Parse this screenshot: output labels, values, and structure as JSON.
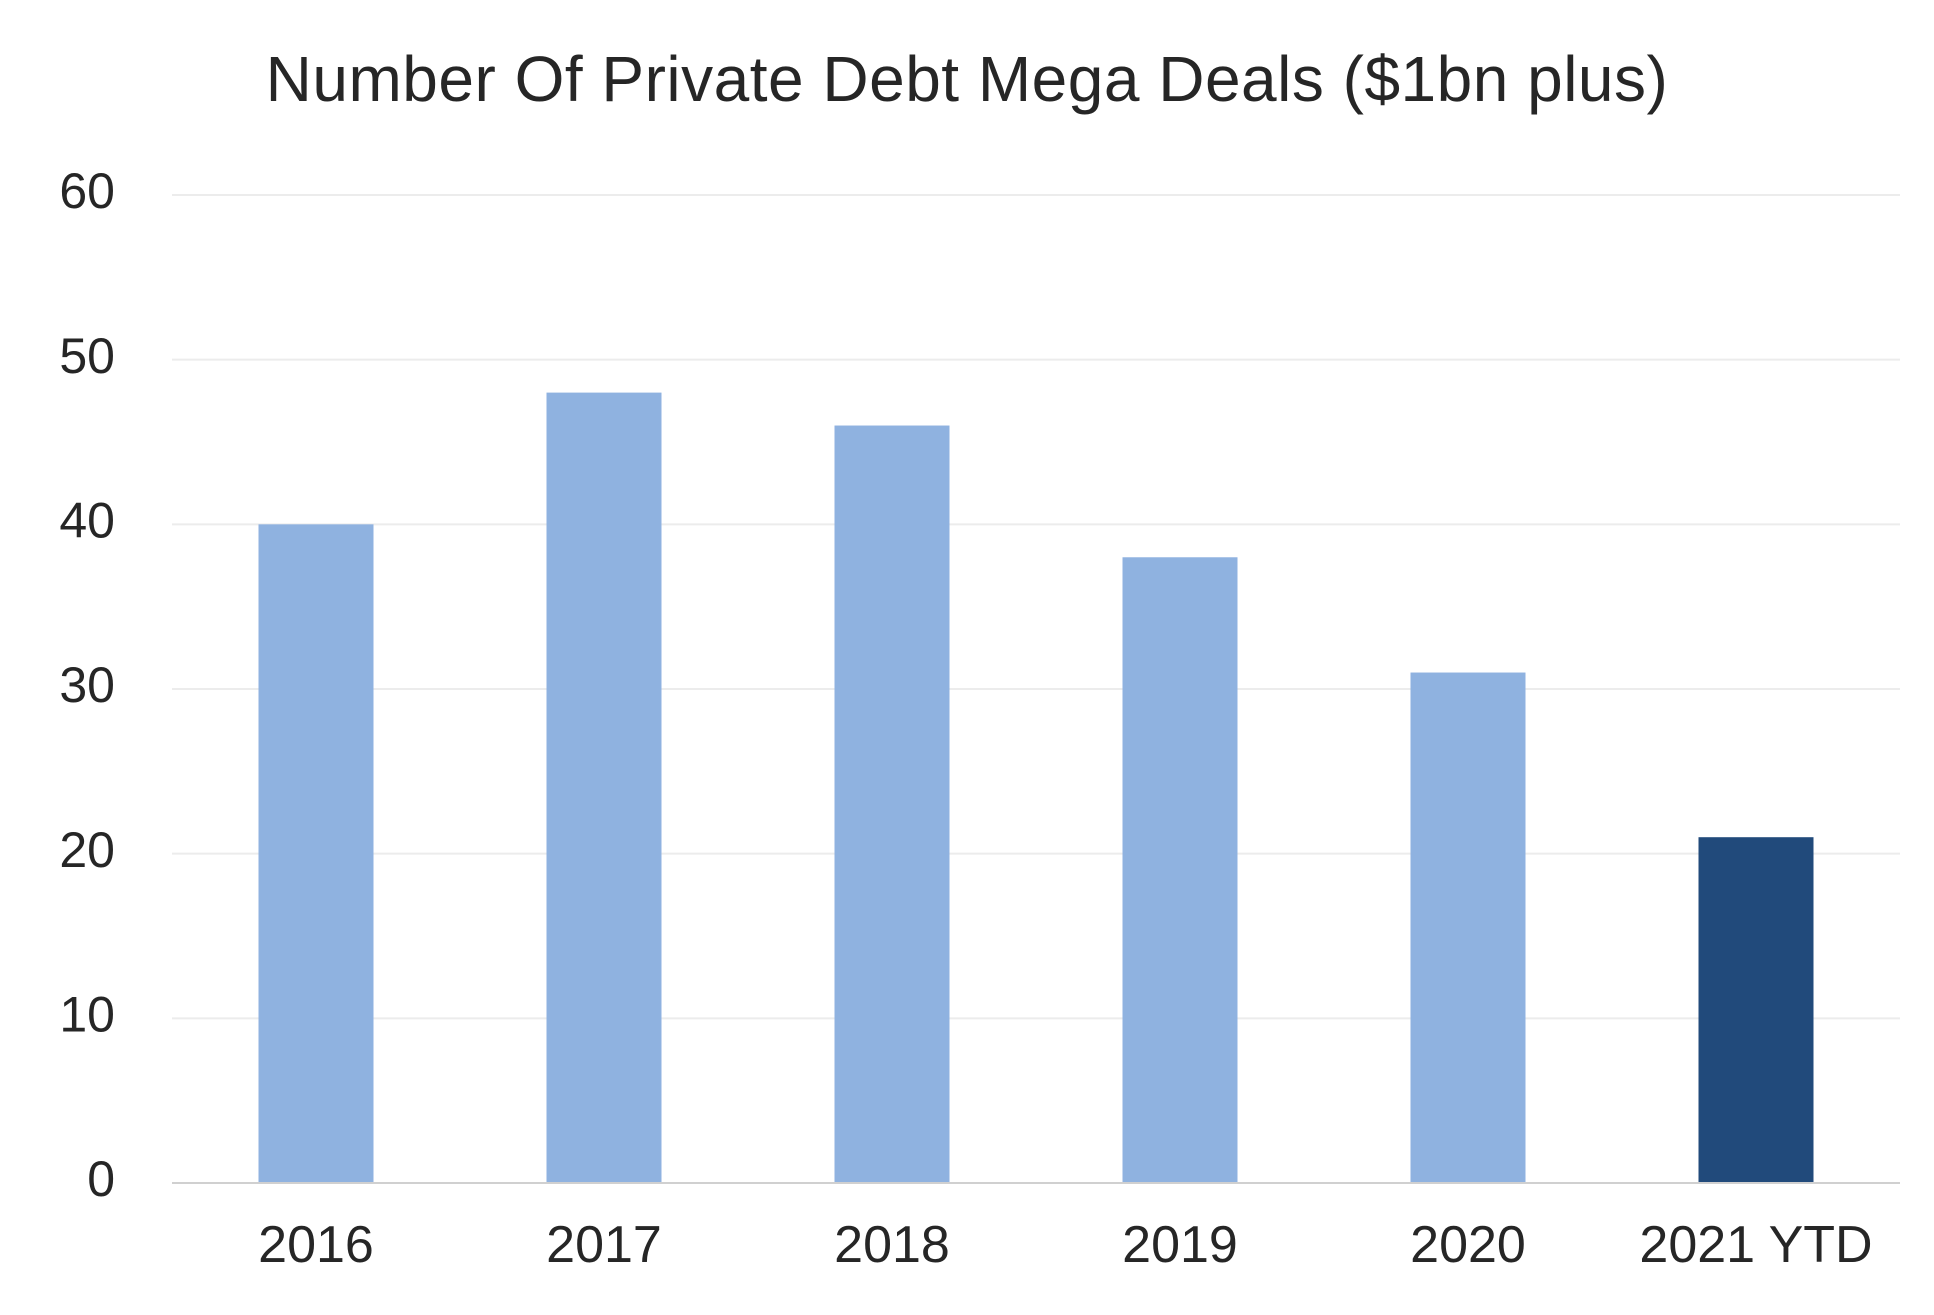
{
  "chart_data": {
    "type": "bar",
    "title": "Number Of Private Debt Mega Deals ($1bn plus)",
    "xlabel": "",
    "ylabel": "",
    "categories": [
      "2016",
      "2017",
      "2018",
      "2019",
      "2020",
      "2021 YTD"
    ],
    "values": [
      40,
      48,
      46,
      38,
      31,
      21
    ],
    "highlight_index": 5,
    "ylim": [
      0,
      60
    ],
    "yticks": [
      0,
      10,
      20,
      30,
      40,
      50,
      60
    ],
    "grid": true,
    "legend": "none",
    "colors": {
      "bar": "#8fb2e0",
      "highlight": "#214a7b",
      "grid": "#ececec",
      "axis": "#d0d0d0"
    }
  }
}
